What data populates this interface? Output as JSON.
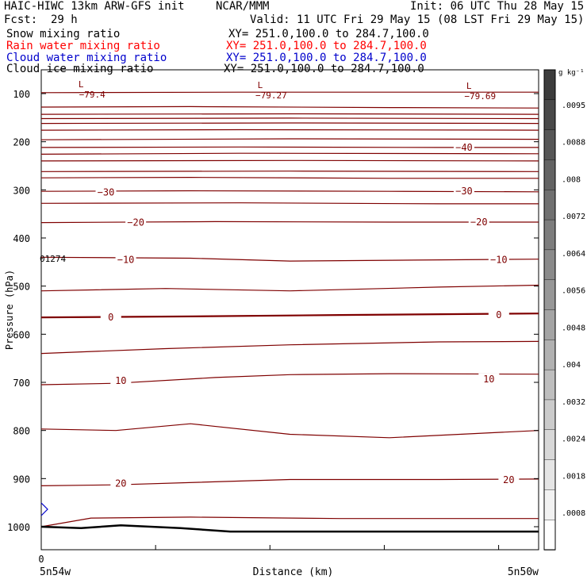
{
  "header": {
    "title_left": "HAIC-HIWC 13km ARW-GFS init",
    "org": "NCAR/MMM",
    "init": "Init: 06 UTC Thu 28 May 15",
    "fcst_label": "Fcst:",
    "fcst_value": "29 h",
    "valid": "Valid: 11 UTC Fri 29 May 15 (08 LST Fri 29 May 15)"
  },
  "fields": [
    {
      "name": "Snow mixing ratio",
      "xy": "XY= 251.0,100.0 to 284.7,100.0",
      "color": "#000000"
    },
    {
      "name": "Rain water mixing ratio",
      "xy": "XY= 251.0,100.0 to 284.7,100.0",
      "color": "#ff0000"
    },
    {
      "name": "Cloud water mixing ratio",
      "xy": "XY= 251.0,100.0 to 284.7,100.0",
      "color": "#0000cc"
    },
    {
      "name": "Cloud ice mixing ratio",
      "xy": "XY= 251.0,100.0 to 284.7,100.0",
      "color": "#000000"
    }
  ],
  "chart_data": {
    "type": "contour cross-section",
    "ylabel": "Pressure (hPa)",
    "xlabel": "Distance (km)",
    "y_ticks": [
      100,
      200,
      300,
      400,
      500,
      600,
      700,
      800,
      900,
      1000
    ],
    "y_range": [
      50,
      1050
    ],
    "x_tick_label": "0",
    "x_start_label": "5n54w",
    "x_end_label": "5n50w",
    "station_label": "01274",
    "colorbar": {
      "unit": "g kg⁻¹",
      "labels": [
        ".0095",
        ".0088",
        ".008",
        ".0072",
        ".0064",
        ".0056",
        ".0048",
        ".004",
        ".0032",
        ".0024",
        ".0018",
        ".0008"
      ]
    },
    "temperature_labels": [
      {
        "text": "−40",
        "x": 0.85,
        "p": 212
      },
      {
        "text": "−30",
        "x": 0.13,
        "p": 305
      },
      {
        "text": "−30",
        "x": 0.85,
        "p": 303
      },
      {
        "text": "−20",
        "x": 0.19,
        "p": 368
      },
      {
        "text": "−20",
        "x": 0.88,
        "p": 367
      },
      {
        "text": "−10",
        "x": 0.17,
        "p": 445
      },
      {
        "text": "−10",
        "x": 0.92,
        "p": 445
      },
      {
        "text": "0",
        "x": 0.14,
        "p": 565
      },
      {
        "text": "0",
        "x": 0.92,
        "p": 560
      },
      {
        "text": "10",
        "x": 0.16,
        "p": 697
      },
      {
        "text": "10",
        "x": 0.9,
        "p": 693
      },
      {
        "text": "20",
        "x": 0.16,
        "p": 910
      },
      {
        "text": "20",
        "x": 0.94,
        "p": 903
      }
    ],
    "lows": [
      {
        "mark": "L",
        "value": "−79.4",
        "x": 0.08,
        "p": 90
      },
      {
        "mark": "L",
        "value": "−79.27",
        "x": 0.44,
        "p": 92
      },
      {
        "mark": "L",
        "value": "−79.69",
        "x": 0.86,
        "p": 93
      }
    ],
    "line_color": "#7f0000",
    "terrain_color": "#000000"
  }
}
